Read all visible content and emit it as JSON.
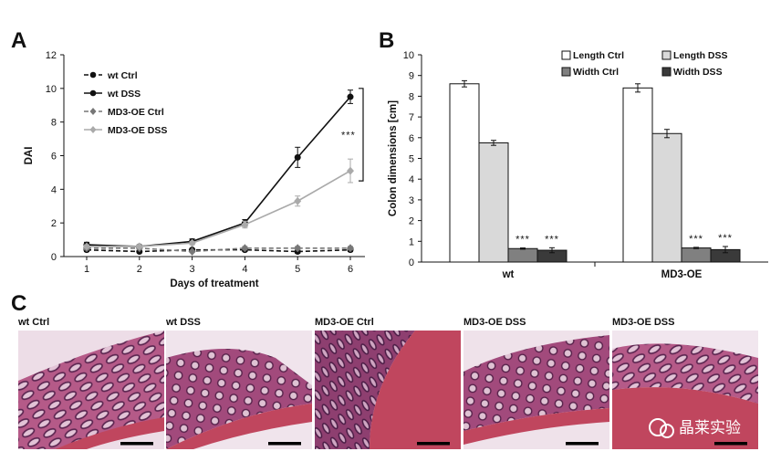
{
  "panels": {
    "a": "A",
    "b": "B",
    "c": "C"
  },
  "chart_data": [
    {
      "type": "line",
      "x": [
        1,
        2,
        3,
        4,
        5,
        6
      ],
      "xlabel": "Days of treatment",
      "ylabel": "DAI",
      "ylim": [
        0,
        12
      ],
      "yticks": [
        0,
        2,
        4,
        6,
        8,
        10,
        12
      ],
      "legend_position": "top-left",
      "grid": false,
      "series": [
        {
          "name": "wt Ctrl",
          "values": [
            0.4,
            0.3,
            0.4,
            0.4,
            0.3,
            0.4
          ],
          "err": [
            0.1,
            0.05,
            0.05,
            0.1,
            0.1,
            0.1
          ],
          "color": "#111111",
          "dashed": true,
          "marker": "circle"
        },
        {
          "name": "wt DSS",
          "values": [
            0.7,
            0.6,
            0.9,
            2.0,
            5.9,
            9.5
          ],
          "err": [
            0.15,
            0.1,
            0.15,
            0.2,
            0.6,
            0.4
          ],
          "color": "#111111",
          "dashed": false,
          "marker": "circle"
        },
        {
          "name": "MD3-OE Ctrl",
          "values": [
            0.5,
            0.5,
            0.3,
            0.5,
            0.5,
            0.5
          ],
          "err": [
            0.1,
            0.1,
            0.05,
            0.1,
            0.1,
            0.1
          ],
          "color": "#777777",
          "dashed": true,
          "marker": "diamond"
        },
        {
          "name": "MD3-OE DSS",
          "values": [
            0.6,
            0.6,
            0.8,
            1.9,
            3.3,
            5.1
          ],
          "err": [
            0.1,
            0.1,
            0.1,
            0.2,
            0.3,
            0.7
          ],
          "color": "#aaaaaa",
          "dashed": false,
          "marker": "diamond"
        }
      ],
      "annotation": "***"
    },
    {
      "type": "bar",
      "categories": [
        "wt",
        "MD3-OE"
      ],
      "ylabel": "Colon dimensions [cm]",
      "ylim": [
        0,
        10
      ],
      "yticks": [
        0,
        1,
        2,
        3,
        4,
        5,
        6,
        7,
        8,
        9,
        10
      ],
      "legend_position": "top-right",
      "grid": false,
      "series": [
        {
          "name": "Length Ctrl",
          "values": [
            8.6,
            8.4
          ],
          "err": [
            0.15,
            0.2
          ],
          "color": "#ffffff",
          "sig": [
            "",
            ""
          ]
        },
        {
          "name": "Length DSS",
          "values": [
            5.75,
            6.2
          ],
          "err": [
            0.12,
            0.2
          ],
          "color": "#d9d9d9",
          "sig": [
            "",
            ""
          ]
        },
        {
          "name": "Width Ctrl",
          "values": [
            0.65,
            0.68
          ],
          "err": [
            0.03,
            0.03
          ],
          "color": "#808080",
          "sig": [
            "***",
            "***"
          ]
        },
        {
          "name": "Width DSS",
          "values": [
            0.57,
            0.6
          ],
          "err": [
            0.12,
            0.15
          ],
          "color": "#3a3a3a",
          "sig": [
            "***",
            "***"
          ]
        }
      ]
    }
  ],
  "micrographs": [
    {
      "label": "wt Ctrl"
    },
    {
      "label": "wt DSS"
    },
    {
      "label": "MD3-OE Ctrl"
    },
    {
      "label": "MD3-OE DSS"
    },
    {
      "label": "MD3-OE DSS"
    }
  ],
  "watermark": "晶莱实验"
}
